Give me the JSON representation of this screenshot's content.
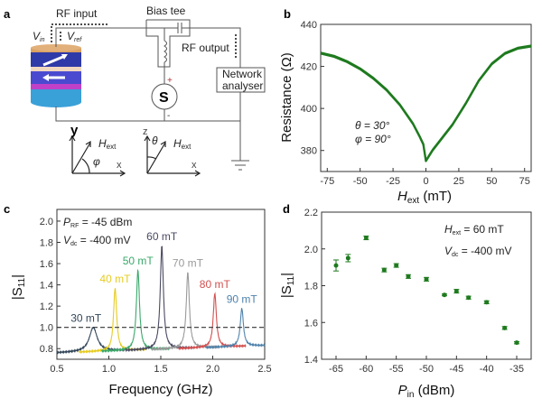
{
  "panels": {
    "a": "a",
    "b": "b",
    "c": "c",
    "d": "d"
  },
  "diagram": {
    "rf_input": "RF input",
    "bias_tee": "Bias tee",
    "rf_output": "RF output",
    "network_analyser_1": "Network",
    "network_analyser_2": "analyser",
    "v_in": "V",
    "v_in_sub": "in",
    "v_ref": "V",
    "v_ref_sub": "ref",
    "source": "S",
    "plus": "+",
    "minus": "-",
    "frame1": {
      "y": "y",
      "x": "x",
      "h": "H",
      "h_sub": "ext",
      "angle": "φ"
    },
    "frame2": {
      "z": "z",
      "x": "x",
      "h": "H",
      "h_sub": "ext",
      "angle": "θ"
    },
    "colors": {
      "cap_top": "#d9a060",
      "layer_blue": "#2e3aa8",
      "spacer": "#f0d8c0",
      "layer_mid": "#4a4ad0",
      "layer_pink": "#c040c8",
      "layer_base": "#3aa0d8"
    }
  },
  "chart_data": [
    {
      "panel": "b",
      "type": "line",
      "xlabel": "H",
      "xlabel_sub": "ext",
      "xlabel_unit": "(mT)",
      "ylabel": "Resistance (Ω)",
      "xlim": [
        -80,
        80
      ],
      "ylim": [
        370,
        440
      ],
      "xticks": [
        -75,
        -50,
        -25,
        0,
        25,
        50,
        75
      ],
      "yticks": [
        380,
        400,
        420,
        440
      ],
      "annotations": [
        "θ = 30°",
        "φ = 90°"
      ],
      "color": "#1e7a1e",
      "x": [
        -80,
        -70,
        -60,
        -50,
        -40,
        -30,
        -20,
        -10,
        -5,
        -2,
        0,
        2,
        5,
        10,
        20,
        30,
        40,
        50,
        60,
        70,
        80
      ],
      "y": [
        426.5,
        425,
        422.5,
        419,
        414.5,
        409,
        402,
        393,
        387,
        383,
        375,
        377,
        380,
        384,
        392,
        402,
        413,
        421,
        426,
        428.5,
        429.5
      ]
    },
    {
      "panel": "c",
      "type": "line",
      "xlabel": "Frequency (GHz)",
      "ylabel": "|S",
      "ylabel_sub": "11",
      "ylabel_end": "|",
      "xlim": [
        0.5,
        2.5
      ],
      "ylim": [
        0.7,
        2.11
      ],
      "xticks": [
        "0.5",
        "1.0",
        "1.5",
        "2.0",
        "2.5"
      ],
      "yticks": [
        "0.8",
        "1.0",
        "1.2",
        "1.4",
        "1.6",
        "1.8",
        "2.0"
      ],
      "reference_line": 1.0,
      "annotations": {
        "p": "P",
        "p_sub": "RF",
        "p_val": " = -45 dBm",
        "v": "V",
        "v_sub": "dc",
        "v_val": " = -400 mV"
      },
      "series": [
        {
          "name": "30 mT",
          "peak_freq": 0.85,
          "peak_value": 1.0,
          "color": "#34485a"
        },
        {
          "name": "40 mT",
          "peak_freq": 1.06,
          "peak_value": 1.37,
          "color": "#e6cc22"
        },
        {
          "name": "50 mT",
          "peak_freq": 1.28,
          "peak_value": 1.54,
          "color": "#3aa86a"
        },
        {
          "name": "60 mT",
          "peak_freq": 1.51,
          "peak_value": 1.77,
          "color": "#4a4a62"
        },
        {
          "name": "70 mT",
          "peak_freq": 1.76,
          "peak_value": 1.52,
          "color": "#9a9a9a"
        },
        {
          "name": "80 mT",
          "peak_freq": 2.02,
          "peak_value": 1.32,
          "color": "#d45050"
        },
        {
          "name": "90 mT",
          "peak_freq": 2.28,
          "peak_value": 1.18,
          "color": "#4f82ac"
        }
      ],
      "baseline": [
        0.76,
        0.83
      ]
    },
    {
      "panel": "d",
      "type": "scatter",
      "xlabel": "P",
      "xlabel_sub": "in",
      "xlabel_unit": "(dBm)",
      "ylabel": "|S",
      "ylabel_sub": "11",
      "ylabel_end": "|",
      "xlim": [
        -67.4,
        -32.6
      ],
      "ylim": [
        1.4,
        2.2
      ],
      "xticks": [
        -65,
        -60,
        -55,
        -50,
        -45,
        -40,
        -35
      ],
      "yticks": [
        "1.4",
        "1.6",
        "1.8",
        "2.0",
        "2.2"
      ],
      "annotations": {
        "h": "H",
        "h_sub": "ext",
        "h_val": " = 60 mT",
        "v": "V",
        "v_sub": "dc",
        "v_val": " = -400 mV"
      },
      "color": "#1e7a1e",
      "x": [
        -65,
        -63,
        -60,
        -57,
        -55,
        -53,
        -50,
        -47,
        -45,
        -43,
        -40,
        -37,
        -35
      ],
      "y": [
        1.91,
        1.95,
        2.06,
        1.885,
        1.91,
        1.85,
        1.835,
        1.75,
        1.77,
        1.735,
        1.71,
        1.57,
        1.49
      ],
      "err": [
        0.03,
        0.02,
        0.01,
        0.01,
        0.01,
        0.01,
        0.01,
        0.005,
        0.01,
        0.008,
        0.008,
        0.008,
        0.006
      ]
    }
  ]
}
